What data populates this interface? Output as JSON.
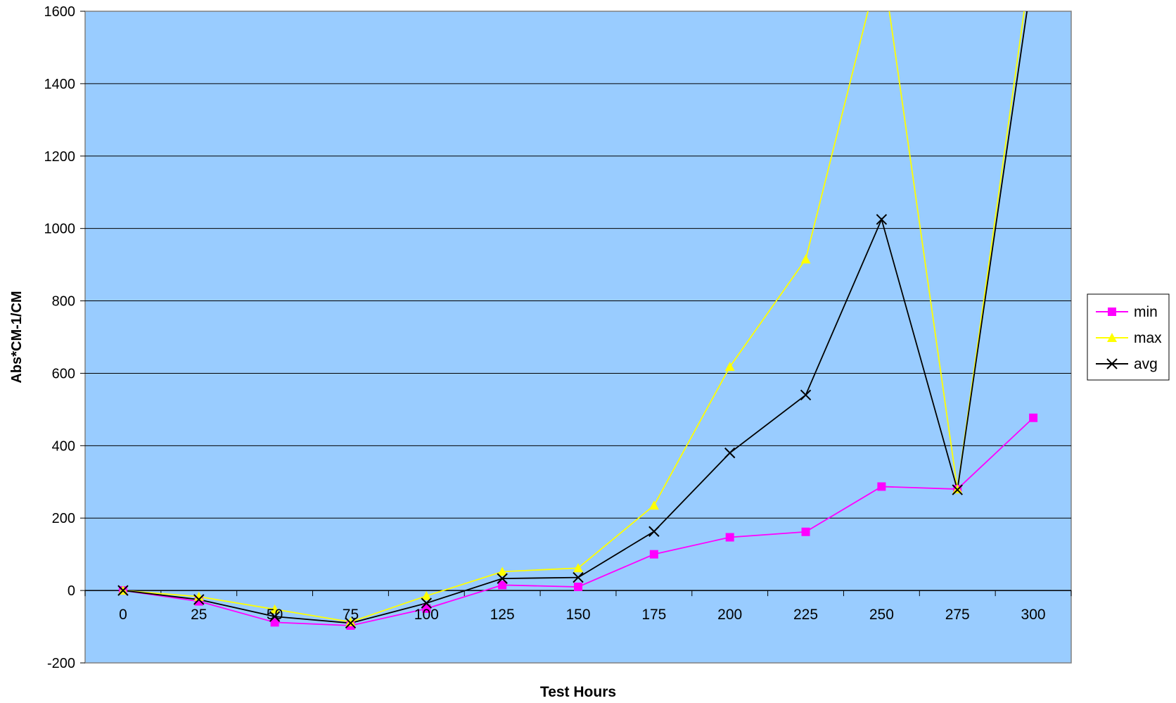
{
  "chart_data": {
    "type": "line",
    "title": "",
    "xlabel": "Test Hours",
    "ylabel": "Abs*CM-1/CM",
    "categories": [
      "0",
      "25",
      "50",
      "75",
      "100",
      "125",
      "150",
      "175",
      "200",
      "225",
      "250",
      "275",
      "300"
    ],
    "ylim": [
      -200,
      1600
    ],
    "yticks": [
      "-200",
      "0",
      "200",
      "400",
      "600",
      "800",
      "1000",
      "1200",
      "1400",
      "1600"
    ],
    "grid": true,
    "legend_position": "right",
    "series": [
      {
        "name": "min",
        "color": "#ff00ff",
        "marker": "square",
        "values": [
          0,
          -30,
          -88,
          -97,
          -50,
          15,
          10,
          100,
          147,
          162,
          287,
          280,
          477
        ]
      },
      {
        "name": "max",
        "color": "#ffff00",
        "marker": "triangle",
        "values": [
          0,
          -17,
          -52,
          -87,
          -15,
          52,
          62,
          235,
          618,
          915,
          1750,
          280,
          1780
        ]
      },
      {
        "name": "avg",
        "color": "#000000",
        "marker": "x",
        "values": [
          0,
          -25,
          -72,
          -90,
          -35,
          33,
          36,
          163,
          380,
          540,
          1025,
          278,
          1720
        ]
      }
    ],
    "plot_background": "#99ccff"
  }
}
